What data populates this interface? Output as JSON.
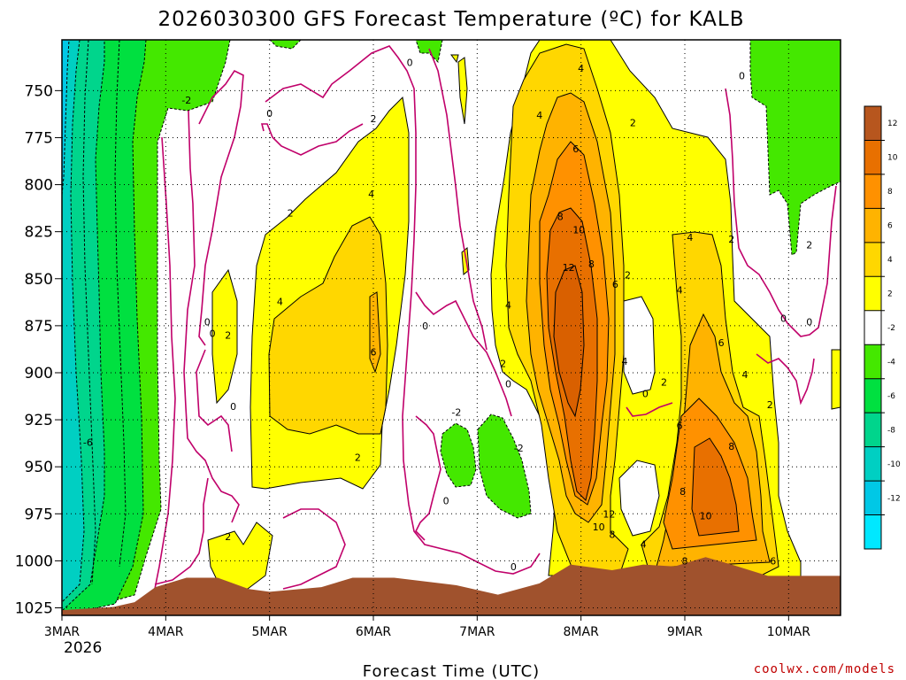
{
  "chart_data": {
    "type": "time-height contour",
    "title": "2026030300 GFS Forecast Temperature (ºC) for KALB",
    "xlabel": "Forecast Time (UTC)",
    "ylabel": "",
    "x_ticks": [
      "3MAR",
      "4MAR",
      "5MAR",
      "6MAR",
      "7MAR",
      "8MAR",
      "9MAR",
      "10MAR"
    ],
    "x_sub": "2026",
    "x_range_days": [
      0,
      7.5
    ],
    "y_ticks": [
      "750",
      "775",
      "800",
      "825",
      "850",
      "875",
      "900",
      "925",
      "950",
      "975",
      "1000",
      "1025"
    ],
    "y_values": [
      750,
      775,
      800,
      825,
      850,
      875,
      900,
      925,
      950,
      975,
      1000,
      1025
    ],
    "ylim_hPa": [
      723,
      1029
    ],
    "grid": true,
    "colorbar": {
      "levels": [
        "12",
        "10",
        "8",
        "6",
        "4",
        "2",
        "-2",
        "-4",
        "-6",
        "-8",
        "-10",
        "-12"
      ],
      "colors": [
        "#b7561e",
        "#e87000",
        "#ff9100",
        "#ffb300",
        "#ffd700",
        "#ffff00",
        "#ffffff",
        "#44e800",
        "#00e040",
        "#00d58c",
        "#00cfc2",
        "#00c8e6",
        "#00e8ff"
      ]
    },
    "fill_colors": {
      "warm2": "#ffff00",
      "warm4": "#ffd700",
      "warm6": "#ffb300",
      "warm8": "#ff9100",
      "warm10": "#e87000",
      "warm12": "#d96000",
      "cold2": "#44e800",
      "cold4": "#00e040",
      "cold6": "#00d58c",
      "cold8": "#00cfc2",
      "cold10": "#00c8e6",
      "zero_line": "#c0006a",
      "terrain": "#a0522d"
    },
    "terrain_surface_hPa": [
      [
        0.0,
        1026.2
      ],
      [
        0.5,
        1024.5
      ],
      [
        0.7,
        1022
      ],
      [
        0.9,
        1014
      ],
      [
        1.2,
        1009
      ],
      [
        1.5,
        1009
      ],
      [
        1.8,
        1015
      ],
      [
        2.0,
        1016.5
      ],
      [
        2.5,
        1014
      ],
      [
        2.8,
        1009
      ],
      [
        3.2,
        1009
      ],
      [
        3.8,
        1013
      ],
      [
        4.2,
        1018
      ],
      [
        4.6,
        1012
      ],
      [
        4.9,
        1002
      ],
      [
        5.3,
        1005
      ],
      [
        5.6,
        1002
      ],
      [
        5.9,
        1003
      ],
      [
        6.2,
        998
      ],
      [
        6.45,
        1002
      ],
      [
        6.8,
        1008
      ],
      [
        7.5,
        1008
      ]
    ],
    "contour_labels": [
      {
        "t": "0",
        "d": 3.35,
        "p": 735
      },
      {
        "t": "0",
        "d": 2.0,
        "p": 762
      },
      {
        "t": "-2",
        "d": 1.2,
        "p": 755
      },
      {
        "t": "2",
        "d": 3.0,
        "p": 765
      },
      {
        "t": "2",
        "d": 2.2,
        "p": 815
      },
      {
        "t": "4",
        "d": 2.98,
        "p": 805
      },
      {
        "t": "4",
        "d": 2.1,
        "p": 862
      },
      {
        "t": "6",
        "d": 3.0,
        "p": 889
      },
      {
        "t": "0",
        "d": 1.4,
        "p": 873
      },
      {
        "t": "0",
        "d": 1.45,
        "p": 879
      },
      {
        "t": "2",
        "d": 1.6,
        "p": 880
      },
      {
        "t": "0",
        "d": 1.65,
        "p": 918
      },
      {
        "t": "2",
        "d": 2.85,
        "p": 945
      },
      {
        "t": "2",
        "d": 1.6,
        "p": 987
      },
      {
        "t": "-6",
        "d": 0.25,
        "p": 937
      },
      {
        "t": "0",
        "d": 3.5,
        "p": 875
      },
      {
        "t": "-2",
        "d": 3.8,
        "p": 921
      },
      {
        "t": "-2",
        "d": 4.4,
        "p": 940
      },
      {
        "t": "0",
        "d": 3.7,
        "p": 968
      },
      {
        "t": "0",
        "d": 4.35,
        "p": 1003
      },
      {
        "t": "2",
        "d": 4.25,
        "p": 895
      },
      {
        "t": "0",
        "d": 4.3,
        "p": 906
      },
      {
        "t": "4",
        "d": 4.3,
        "p": 864
      },
      {
        "t": "4",
        "d": 4.6,
        "p": 763
      },
      {
        "t": "4",
        "d": 5.0,
        "p": 738
      },
      {
        "t": "6",
        "d": 4.95,
        "p": 781
      },
      {
        "t": "8",
        "d": 4.8,
        "p": 817
      },
      {
        "t": "10",
        "d": 4.98,
        "p": 824
      },
      {
        "t": "12",
        "d": 4.88,
        "p": 844
      },
      {
        "t": "8",
        "d": 5.1,
        "p": 842
      },
      {
        "t": "2",
        "d": 5.5,
        "p": 767
      },
      {
        "t": "0",
        "d": 6.55,
        "p": 742
      },
      {
        "t": "2",
        "d": 5.45,
        "p": 848
      },
      {
        "t": "6",
        "d": 5.33,
        "p": 853
      },
      {
        "t": "4",
        "d": 5.42,
        "p": 894
      },
      {
        "t": "0",
        "d": 5.62,
        "p": 911
      },
      {
        "t": "2",
        "d": 5.8,
        "p": 905
      },
      {
        "t": "4",
        "d": 6.05,
        "p": 828
      },
      {
        "t": "4",
        "d": 5.95,
        "p": 856
      },
      {
        "t": "2",
        "d": 6.45,
        "p": 829
      },
      {
        "t": "2",
        "d": 7.2,
        "p": 832
      },
      {
        "t": "0",
        "d": 6.95,
        "p": 871
      },
      {
        "t": "0",
        "d": 7.2,
        "p": 873
      },
      {
        "t": "6",
        "d": 6.35,
        "p": 884
      },
      {
        "t": "4",
        "d": 6.58,
        "p": 901
      },
      {
        "t": "2",
        "d": 6.82,
        "p": 917
      },
      {
        "t": "6",
        "d": 5.95,
        "p": 928
      },
      {
        "t": "8",
        "d": 6.45,
        "p": 939
      },
      {
        "t": "8",
        "d": 5.98,
        "p": 963
      },
      {
        "t": "10",
        "d": 6.2,
        "p": 976
      },
      {
        "t": "12",
        "d": 5.27,
        "p": 975
      },
      {
        "t": "10",
        "d": 5.17,
        "p": 982
      },
      {
        "t": "8",
        "d": 5.3,
        "p": 986
      },
      {
        "t": "4",
        "d": 5.6,
        "p": 991
      },
      {
        "t": "8",
        "d": 6.0,
        "p": 1000
      },
      {
        "t": "6",
        "d": 6.85,
        "p": 1000
      }
    ],
    "notes": "Filled temperature contours at 2°C intervals; magenta line is the 0°C isotherm; brown area is below ground."
  },
  "credit": "coolwx.com/models"
}
